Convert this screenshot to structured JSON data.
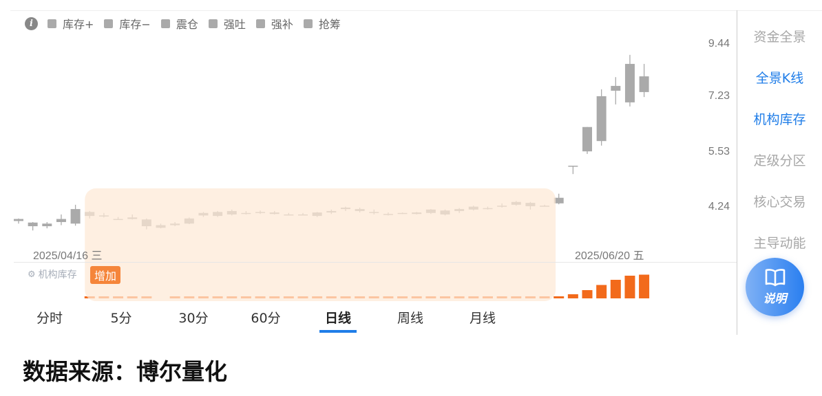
{
  "legend": {
    "info_icon": "info-icon",
    "items": [
      "库存+",
      "库存−",
      "震仓",
      "强吐",
      "强补",
      "抢筹"
    ],
    "swatch_color": "#aaaaaa"
  },
  "chart_data": {
    "type": "candlestick",
    "y_scale": "log",
    "y_ticks": [
      "9.44",
      "7.23",
      "5.53",
      "4.24"
    ],
    "x_labels": [
      "2025/04/16 三",
      "2025/06/20 五"
    ],
    "candle_color": "#aaaaaa",
    "highlight_range": [
      5,
      37
    ],
    "highlight_color": "#fde9d6",
    "candles": [
      [
        3.97,
        4.02,
        3.92,
        4.01
      ],
      [
        3.94,
        3.95,
        3.79,
        3.87
      ],
      [
        3.92,
        3.95,
        3.83,
        3.87
      ],
      [
        3.95,
        4.1,
        3.89,
        4.01
      ],
      [
        3.92,
        4.3,
        3.88,
        4.21
      ],
      [
        4.15,
        4.17,
        4.02,
        4.07
      ],
      [
        4.08,
        4.13,
        4.04,
        4.08
      ],
      [
        4.01,
        4.05,
        4.0,
        4.01
      ],
      [
        4.04,
        4.1,
        4.0,
        4.01
      ],
      [
        4.0,
        4.02,
        3.81,
        3.87
      ],
      [
        3.89,
        3.92,
        3.83,
        3.84
      ],
      [
        3.89,
        3.95,
        3.87,
        3.92
      ],
      [
        3.92,
        4.04,
        3.91,
        4.02
      ],
      [
        4.08,
        4.15,
        4.05,
        4.13
      ],
      [
        4.07,
        4.17,
        4.05,
        4.15
      ],
      [
        4.1,
        4.2,
        4.08,
        4.17
      ],
      [
        4.13,
        4.17,
        4.1,
        4.13
      ],
      [
        4.13,
        4.18,
        4.11,
        4.15
      ],
      [
        4.11,
        4.17,
        4.1,
        4.14
      ],
      [
        4.1,
        4.13,
        4.08,
        4.1
      ],
      [
        4.1,
        4.13,
        4.08,
        4.1
      ],
      [
        4.07,
        4.15,
        4.05,
        4.14
      ],
      [
        4.14,
        4.2,
        4.11,
        4.17
      ],
      [
        4.21,
        4.26,
        4.17,
        4.24
      ],
      [
        4.21,
        4.24,
        4.14,
        4.17
      ],
      [
        4.15,
        4.2,
        4.1,
        4.13
      ],
      [
        4.11,
        4.14,
        4.08,
        4.11
      ],
      [
        4.13,
        4.14,
        4.11,
        4.13
      ],
      [
        4.11,
        4.15,
        4.1,
        4.14
      ],
      [
        4.13,
        4.21,
        4.11,
        4.2
      ],
      [
        4.18,
        4.2,
        4.08,
        4.1
      ],
      [
        4.17,
        4.23,
        4.13,
        4.21
      ],
      [
        4.2,
        4.28,
        4.18,
        4.26
      ],
      [
        4.23,
        4.26,
        4.2,
        4.23
      ],
      [
        4.28,
        4.33,
        4.24,
        4.28
      ],
      [
        4.3,
        4.38,
        4.28,
        4.36
      ],
      [
        4.34,
        4.36,
        4.2,
        4.27
      ],
      [
        4.28,
        4.3,
        4.26,
        4.28
      ],
      [
        4.33,
        4.54,
        4.31,
        4.45
      ],
      [
        5.21,
        5.21,
        5.0,
        5.21
      ],
      [
        5.59,
        6.3,
        5.52,
        6.3
      ],
      [
        5.88,
        7.58,
        5.75,
        7.33
      ],
      [
        7.53,
        8.05,
        7.04,
        7.71
      ],
      [
        7.11,
        8.98,
        6.97,
        8.59
      ],
      [
        8.08,
        8.59,
        7.3,
        7.48
      ]
    ],
    "inventory": {
      "label": "机构库存",
      "badge": "增加",
      "color": "#f26a1b",
      "values": [
        null,
        null,
        null,
        null,
        null,
        1,
        1,
        1,
        1,
        1,
        null,
        1,
        1,
        1,
        1,
        1,
        1,
        1,
        1,
        1,
        1,
        1,
        1,
        1,
        1,
        1,
        1,
        1,
        1,
        1,
        1,
        1,
        1,
        1,
        1,
        1,
        1,
        1,
        1,
        2,
        4,
        6.5,
        9,
        11,
        11.5
      ]
    }
  },
  "tabs": [
    {
      "label": "分时"
    },
    {
      "label": "5分"
    },
    {
      "label": "30分"
    },
    {
      "label": "60分"
    },
    {
      "label": "日线",
      "active": true
    },
    {
      "label": "周线"
    },
    {
      "label": "月线"
    }
  ],
  "side_menu": [
    {
      "label": "资金全景"
    },
    {
      "label": "全景K线",
      "active": true
    },
    {
      "label": "机构库存",
      "active": true
    },
    {
      "label": "定级分区"
    },
    {
      "label": "核心交易"
    },
    {
      "label": "主导动能"
    }
  ],
  "help_button": {
    "label": "说明",
    "icon": "book-icon"
  },
  "footer": "数据来源：博尔量化",
  "accent_color": "#1f7de8"
}
